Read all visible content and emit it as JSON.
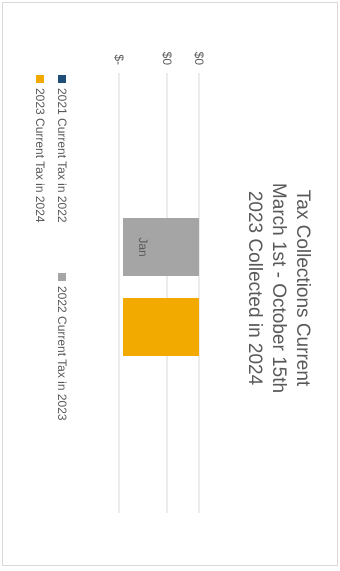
{
  "chart_data": {
    "type": "bar",
    "orientation": "horizontal",
    "title_lines": [
      "Tax Collections Current",
      "March 1st - October 15th",
      "2023 Collected in 2024"
    ],
    "categories": [
      "Jan"
    ],
    "y_tick_labels": [
      "$0",
      "$0",
      "$-"
    ],
    "series": [
      {
        "name": "2021 Current Tax in 2022",
        "values": [
          0
        ],
        "color": "#1f4e79"
      },
      {
        "name": "2022 Current Tax in 2023",
        "values": [
          1
        ],
        "color": "#a5a5a5"
      },
      {
        "name": "2023 Current Tax in 2024",
        "values": [
          1
        ],
        "color": "#f2a900"
      }
    ],
    "xlim": [
      0,
      1
    ],
    "grid": true,
    "legend_position": "bottom"
  }
}
